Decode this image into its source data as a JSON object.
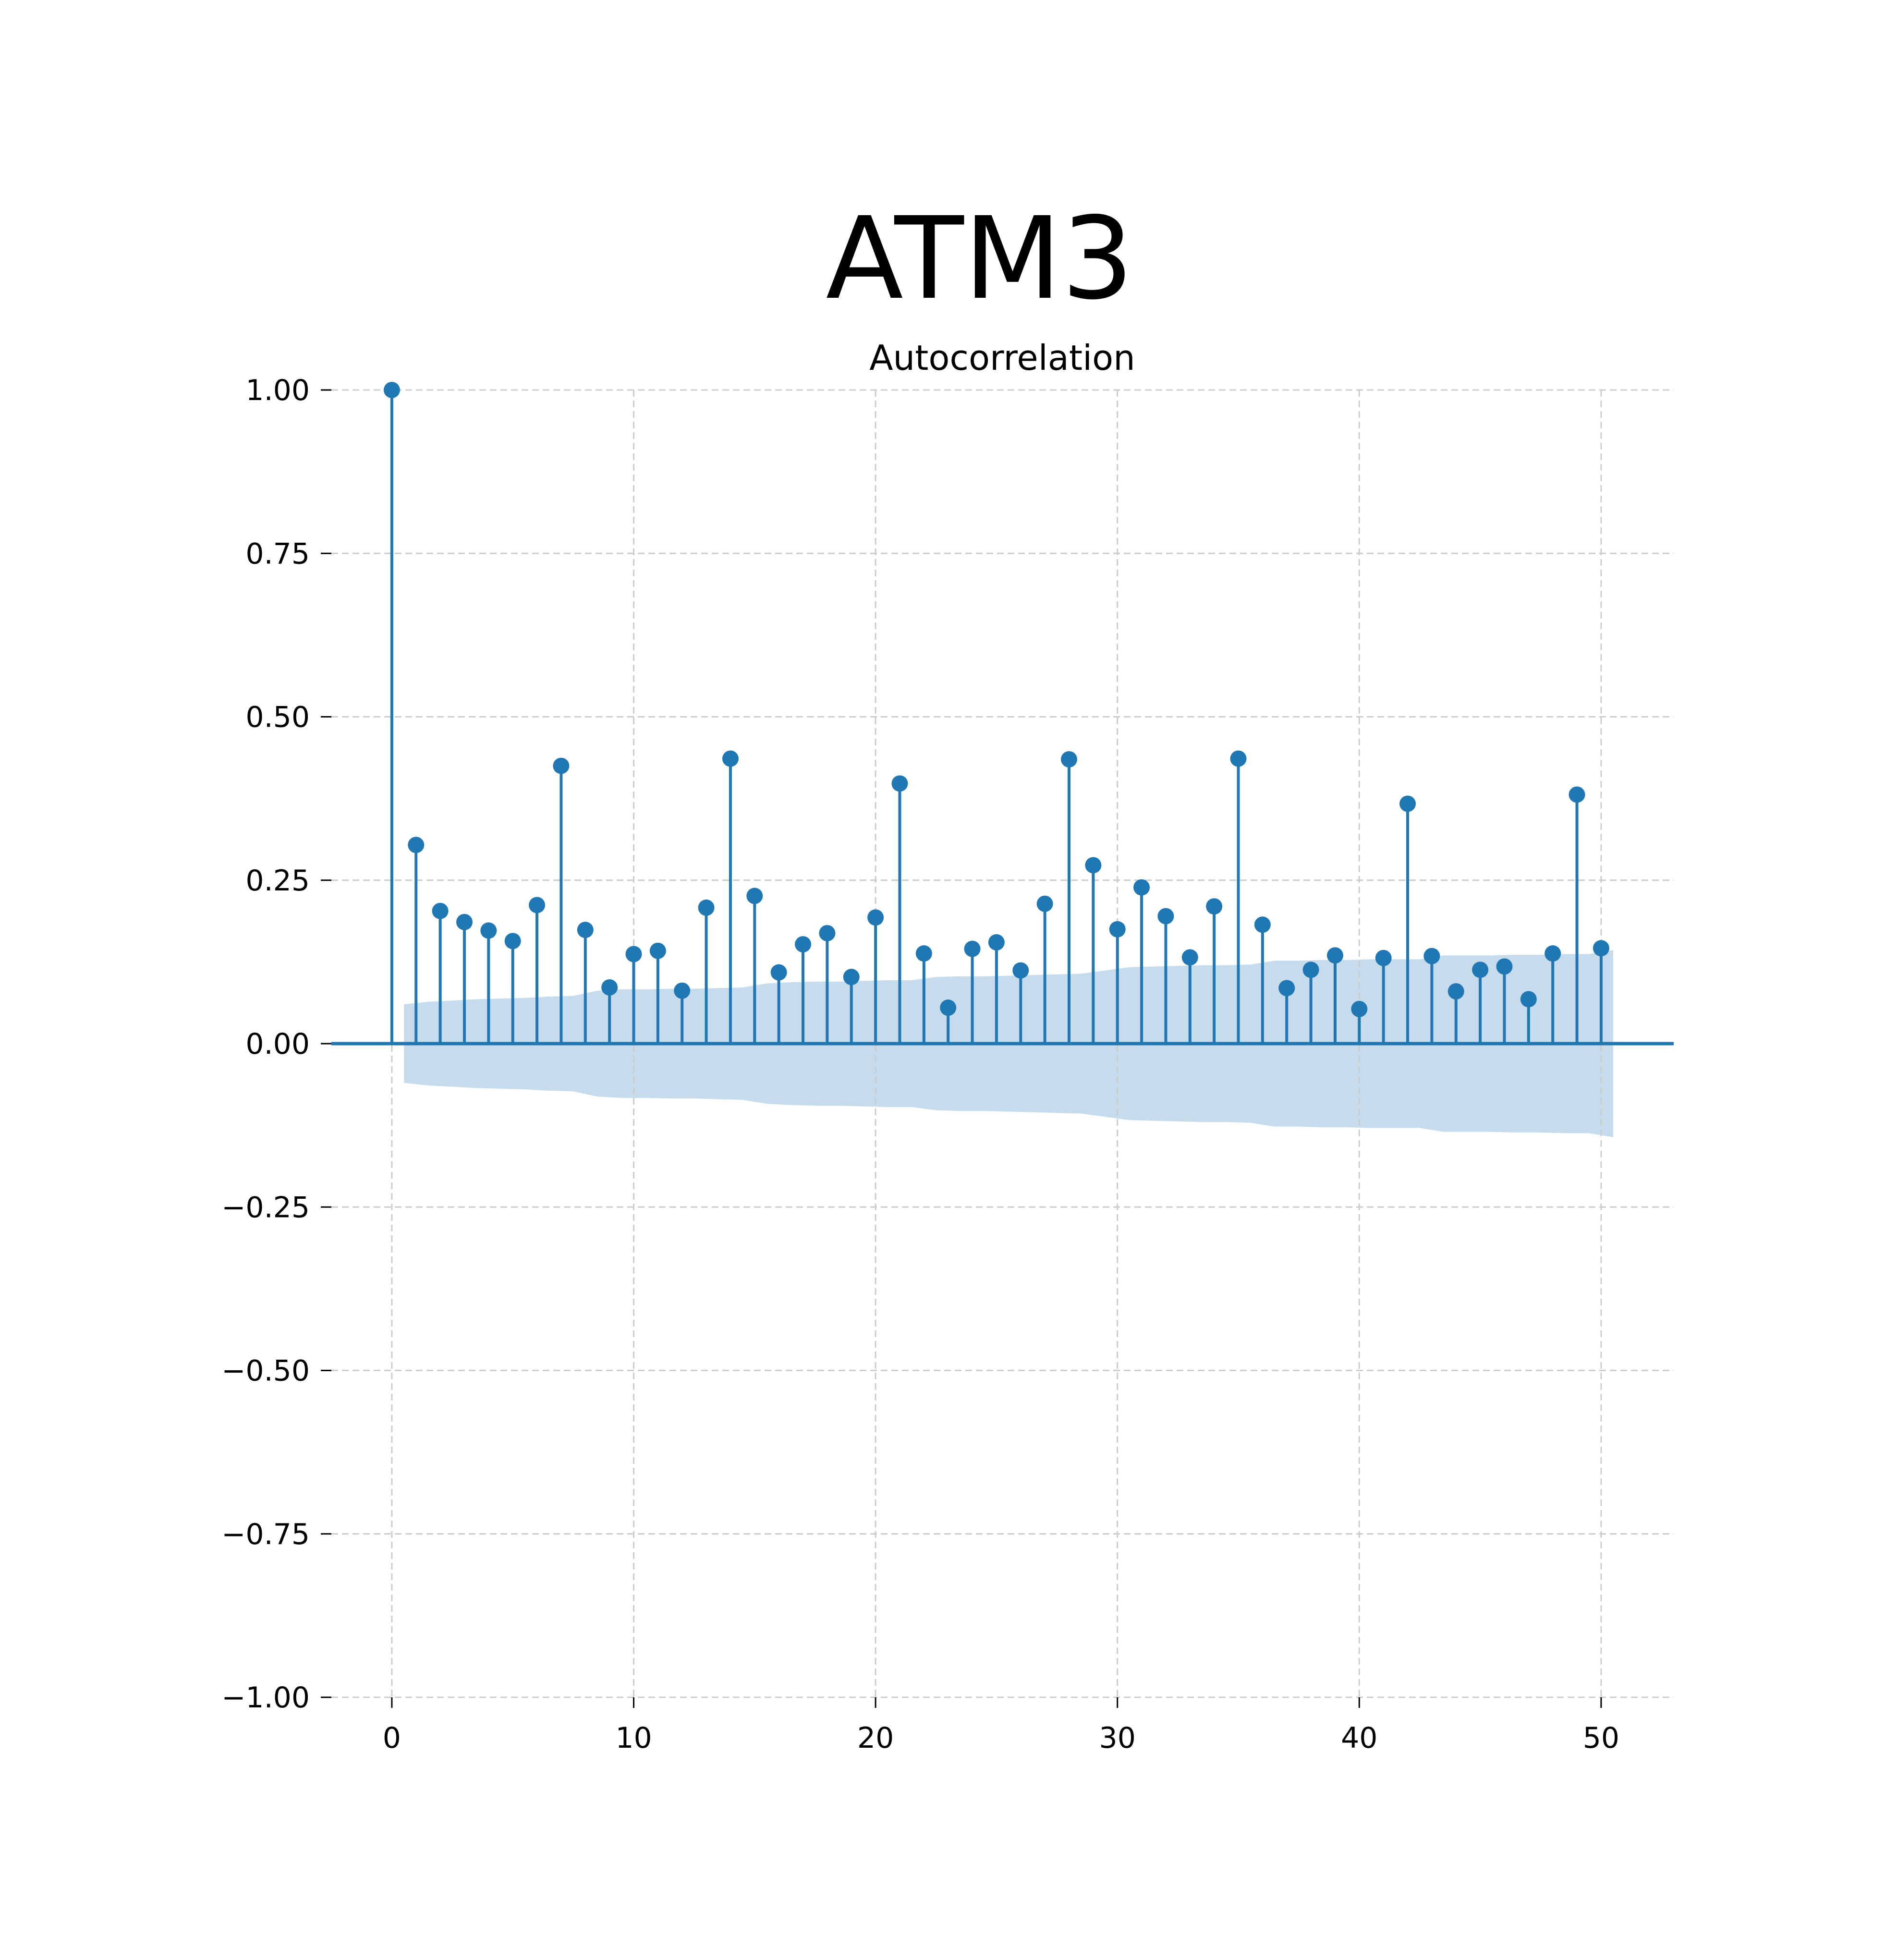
{
  "chart_data": {
    "type": "stem",
    "title": "ATM3",
    "subtitle": "Autocorrelation",
    "xlabel": "",
    "ylabel": "",
    "xlim": [
      -2.5,
      53
    ],
    "ylim": [
      -1.0,
      1.0
    ],
    "x_ticks": [
      0,
      10,
      20,
      30,
      40,
      50
    ],
    "x_tick_labels": [
      "0",
      "10",
      "20",
      "30",
      "40",
      "50"
    ],
    "y_ticks": [
      1.0,
      0.75,
      0.5,
      0.25,
      0.0,
      -0.25,
      -0.5,
      -0.75,
      -1.0
    ],
    "y_tick_labels": [
      "1.00",
      "0.75",
      "0.50",
      "0.25",
      "0.00",
      "−0.25",
      "−0.50",
      "−0.75",
      "−1.00"
    ],
    "grid": true,
    "grid_style": "dashed",
    "lags": [
      0,
      1,
      2,
      3,
      4,
      5,
      6,
      7,
      8,
      9,
      10,
      11,
      12,
      13,
      14,
      15,
      16,
      17,
      18,
      19,
      20,
      21,
      22,
      23,
      24,
      25,
      26,
      27,
      28,
      29,
      30,
      31,
      32,
      33,
      34,
      35,
      36,
      37,
      38,
      39,
      40,
      41,
      42,
      43,
      44,
      45,
      46,
      47,
      48,
      49,
      50
    ],
    "values": [
      1.0,
      0.304,
      0.203,
      0.186,
      0.173,
      0.157,
      0.212,
      0.425,
      0.174,
      0.086,
      0.137,
      0.142,
      0.081,
      0.208,
      0.436,
      0.226,
      0.109,
      0.152,
      0.169,
      0.102,
      0.193,
      0.398,
      0.138,
      0.055,
      0.145,
      0.155,
      0.112,
      0.214,
      0.435,
      0.273,
      0.175,
      0.239,
      0.195,
      0.132,
      0.21,
      0.436,
      0.182,
      0.085,
      0.113,
      0.135,
      0.053,
      0.131,
      0.367,
      0.134,
      0.08,
      0.113,
      0.118,
      0.068,
      0.138,
      0.381,
      0.146
    ],
    "confidence_band": {
      "x_start": 0.5,
      "x_end": 50.5,
      "upper": [
        0.06,
        0.064,
        0.066,
        0.068,
        0.069,
        0.07,
        0.072,
        0.073,
        0.081,
        0.083,
        0.083,
        0.084,
        0.084,
        0.085,
        0.086,
        0.092,
        0.094,
        0.095,
        0.095,
        0.096,
        0.097,
        0.097,
        0.102,
        0.103,
        0.103,
        0.104,
        0.105,
        0.106,
        0.107,
        0.112,
        0.117,
        0.118,
        0.119,
        0.12,
        0.12,
        0.121,
        0.127,
        0.127,
        0.128,
        0.128,
        0.129,
        0.129,
        0.129,
        0.135,
        0.135,
        0.135,
        0.136,
        0.136,
        0.137,
        0.137,
        0.143
      ],
      "lower": [
        -0.06,
        -0.064,
        -0.066,
        -0.068,
        -0.069,
        -0.07,
        -0.072,
        -0.073,
        -0.081,
        -0.083,
        -0.083,
        -0.084,
        -0.084,
        -0.085,
        -0.086,
        -0.092,
        -0.094,
        -0.095,
        -0.095,
        -0.096,
        -0.097,
        -0.097,
        -0.102,
        -0.103,
        -0.103,
        -0.104,
        -0.105,
        -0.106,
        -0.107,
        -0.112,
        -0.117,
        -0.118,
        -0.119,
        -0.12,
        -0.12,
        -0.121,
        -0.127,
        -0.127,
        -0.128,
        -0.128,
        -0.129,
        -0.129,
        -0.129,
        -0.135,
        -0.135,
        -0.135,
        -0.136,
        -0.136,
        -0.137,
        -0.137,
        -0.143
      ]
    },
    "colors": {
      "stem": "#1f77b4",
      "band": "#c6dcec",
      "grid": "#cccccc",
      "axis": "#000000",
      "text": "#000000"
    }
  }
}
